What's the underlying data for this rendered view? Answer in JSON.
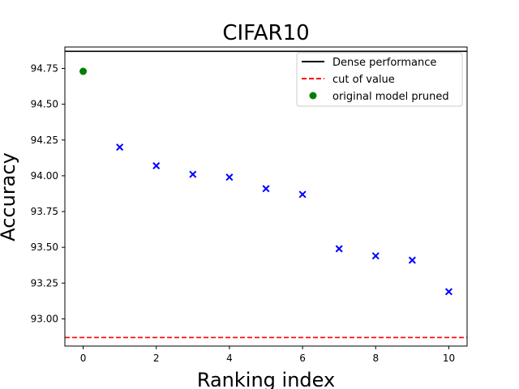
{
  "chart_data": {
    "type": "scatter",
    "title": "CIFAR10",
    "xlabel": "Ranking index",
    "ylabel": "Accuracy",
    "xlim": [
      -0.5,
      10.5
    ],
    "ylim": [
      92.81,
      94.9
    ],
    "xticks": [
      0,
      2,
      4,
      6,
      8,
      10
    ],
    "yticks": [
      93.0,
      93.25,
      93.5,
      93.75,
      94.0,
      94.25,
      94.5,
      94.75
    ],
    "ytick_labels": [
      "93.00",
      "93.25",
      "93.50",
      "93.75",
      "94.00",
      "94.25",
      "94.50",
      "94.75"
    ],
    "grid": false,
    "legend_position": "top-right",
    "hlines": [
      {
        "name": "Dense performance",
        "y": 94.87,
        "color": "#000000",
        "style": "solid"
      },
      {
        "name": "cut of value",
        "y": 92.87,
        "color": "#ff0000",
        "style": "dashed"
      }
    ],
    "series": [
      {
        "name": "original model pruned",
        "marker": "circle",
        "color": "#008000",
        "x": [
          0
        ],
        "y": [
          94.73
        ]
      },
      {
        "name": "",
        "marker": "x",
        "color": "#0000ff",
        "x": [
          1,
          2,
          3,
          4,
          5,
          6,
          7,
          8,
          9,
          10
        ],
        "y": [
          94.2,
          94.07,
          94.01,
          93.99,
          93.91,
          93.87,
          93.49,
          93.44,
          93.41,
          93.19
        ]
      }
    ],
    "legend": [
      {
        "label": "Dense performance",
        "kind": "solid-line",
        "color": "#000000"
      },
      {
        "label": "cut of value",
        "kind": "dashed-line",
        "color": "#ff0000"
      },
      {
        "label": "original model pruned",
        "kind": "circle",
        "color": "#008000"
      }
    ]
  }
}
